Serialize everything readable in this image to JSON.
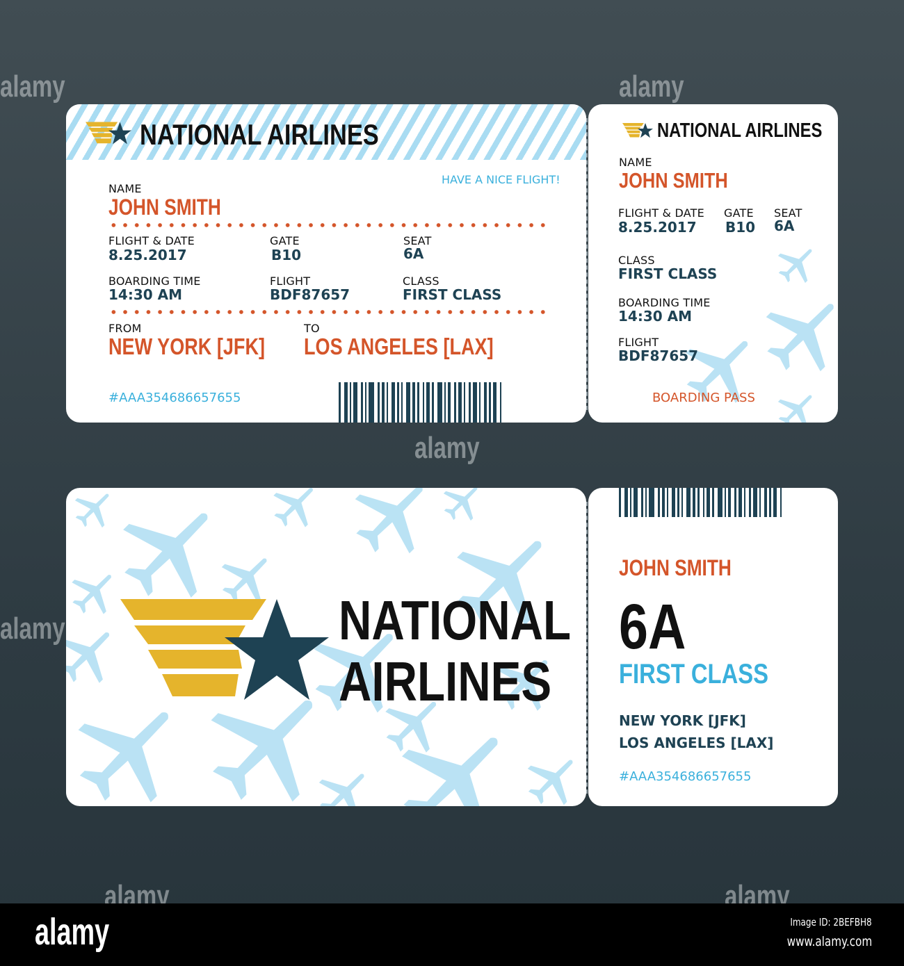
{
  "colors": {
    "orange": "#d4552a",
    "navy": "#1e4253",
    "blue": "#3ab0dc",
    "plane": "#a9dcf2",
    "gold": "#e5b42c"
  },
  "watermark": "alamy",
  "ticket1": {
    "airline": "NATIONAL AIRLINES",
    "greeting": "HAVE A NICE FLIGHT!",
    "name_label": "NAME",
    "name": "JOHN SMITH",
    "flight_date_label": "FLIGHT & DATE",
    "flight_date": "8.25.2017",
    "gate_label": "GATE",
    "gate": "B10",
    "seat_label": "SEAT",
    "seat": "6A",
    "boarding_time_label": "BOARDING TIME",
    "boarding_time": "14:30 AM",
    "flight_label": "FLIGHT",
    "flight": "BDF87657",
    "class_label": "CLASS",
    "class": "FIRST CLASS",
    "from_label": "FROM",
    "from": "NEW YORK [JFK]",
    "to_label": "TO",
    "to": "LOS ANGELES [LAX]",
    "code": "#AAA354686657655"
  },
  "stub1": {
    "airline": "NATIONAL AIRLINES",
    "name_label": "NAME",
    "name": "JOHN SMITH",
    "flight_date_label": "FLIGHT & DATE",
    "flight_date": "8.25.2017",
    "gate_label": "GATE",
    "gate": "B10",
    "seat_label": "SEAT",
    "seat": "6A",
    "class_label": "CLASS",
    "class": "FIRST CLASS",
    "boarding_time_label": "BOARDING TIME",
    "boarding_time": "14:30 AM",
    "flight_label": "FLIGHT",
    "flight": "BDF87657",
    "footer": "BOARDING PASS"
  },
  "ticket2": {
    "airline_line1": "NATIONAL",
    "airline_line2": "AIRLINES"
  },
  "stub2": {
    "name": "JOHN SMITH",
    "seat": "6A",
    "class": "FIRST CLASS",
    "from": "NEW YORK [JFK]",
    "to": "LOS ANGELES [LAX]",
    "code": "#AAA354686657655"
  },
  "footer": {
    "logo": "alamy",
    "image_id": "Image ID: 2BEFBH8",
    "url": "www.alamy.com"
  }
}
